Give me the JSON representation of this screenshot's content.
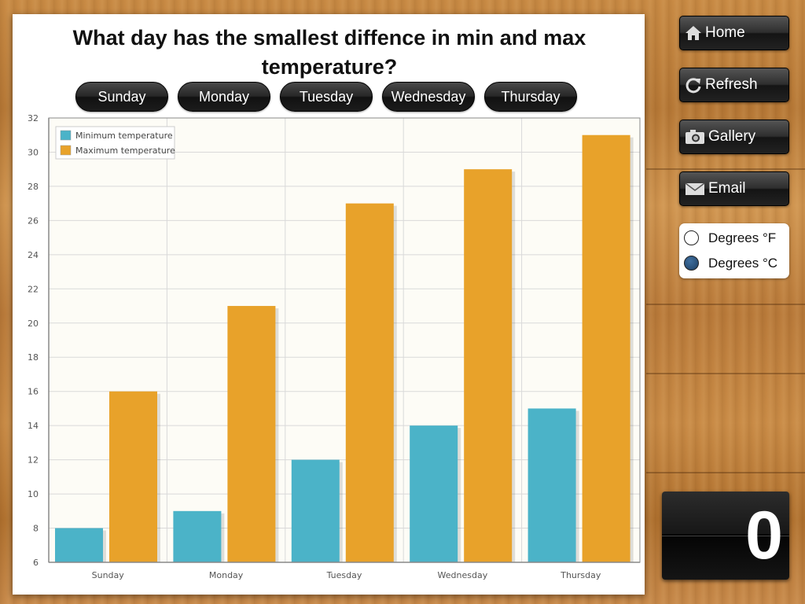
{
  "question": "What day has the smallest diffence in min and max temperature?",
  "day_buttons": [
    "Sunday",
    "Monday",
    "Tuesday",
    "Wednesday",
    "Thursday"
  ],
  "sidebar": {
    "home": "Home",
    "refresh": "Refresh",
    "gallery": "Gallery",
    "email": "Email"
  },
  "units": {
    "fahrenheit": "Degrees °F",
    "celsius": "Degrees °C",
    "selected": "celsius"
  },
  "score": "0",
  "colors": {
    "min": "#4bb3c8",
    "max": "#e8a22a"
  },
  "chart_data": {
    "type": "bar",
    "title": "",
    "xlabel": "",
    "ylabel": "",
    "categories": [
      "Sunday",
      "Monday",
      "Tuesday",
      "Wednesday",
      "Thursday"
    ],
    "series": [
      {
        "name": "Minimum temperature",
        "values": [
          8,
          9,
          12,
          14,
          15
        ]
      },
      {
        "name": "Maximum temperature",
        "values": [
          16,
          21,
          27,
          29,
          31
        ]
      }
    ],
    "ylim": [
      6,
      32
    ],
    "yticks": [
      6,
      8,
      10,
      12,
      14,
      16,
      18,
      20,
      22,
      24,
      26,
      28,
      30,
      32
    ],
    "grid": true,
    "legend": "top-left"
  }
}
